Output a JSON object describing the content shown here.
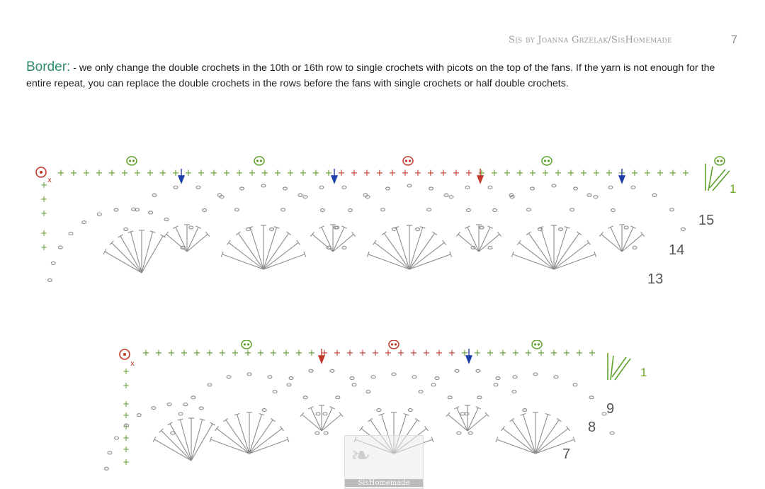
{
  "header": {
    "brand": "Sis by Joanna Grzelak/SisHomemade",
    "page_number": "7"
  },
  "intro": {
    "label": "Border:",
    "text": " - we only change the double crochets in the 10th or 16th row to single crochets with picots on the top of the fans. If the yarn is not enough for the entire repeat, you can replace the double crochets in the rows before the fans with single crochets or half double crochets."
  },
  "chart_top": {
    "row_labels": [
      "1",
      "15",
      "14",
      "13"
    ]
  },
  "chart_bottom": {
    "row_labels": [
      "1",
      "9",
      "8",
      "7"
    ]
  },
  "watermark": {
    "label": "SisHomemade"
  },
  "colors": {
    "green": "#5ea02c",
    "red": "#c0392b",
    "blue": "#1f3fa8",
    "grey": "#8c8c8c",
    "heading": "#2f8a6b"
  },
  "icons": [
    "picot-icon",
    "marker-arrow-icon",
    "start-ring-icon",
    "needle-icon",
    "fan-stitch-icon"
  ]
}
